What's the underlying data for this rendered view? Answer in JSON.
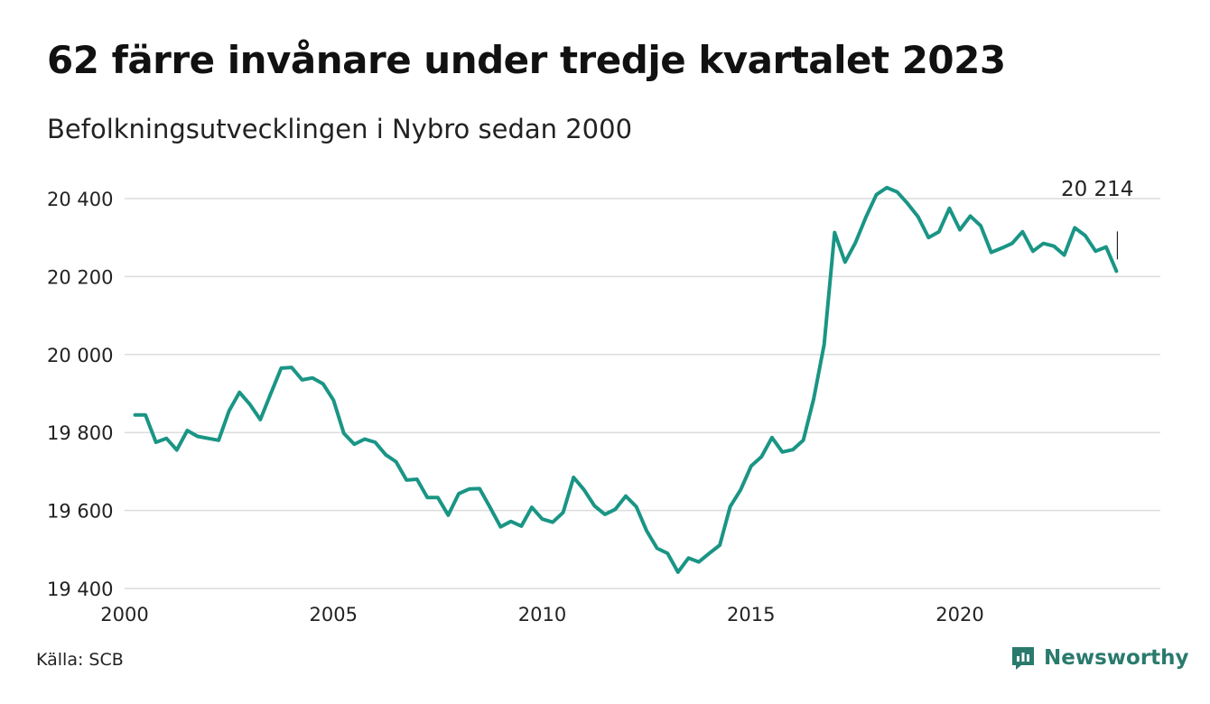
{
  "header": {
    "title": "62 färre invånare under tredje kvartalet 2023",
    "subtitle": "Befolkningsutvecklingen i Nybro sedan 2000"
  },
  "footer": {
    "source": "Källa: SCB",
    "brand": "Newsworthy"
  },
  "colors": {
    "line": "#1a9585",
    "grid": "#dcdcdc",
    "brand": "#2a7a6d"
  },
  "chart_data": {
    "type": "line",
    "title": "62 färre invånare under tredje kvartalet 2023",
    "subtitle": "Befolkningsutvecklingen i Nybro sedan 2000",
    "xlabel": "",
    "ylabel": "",
    "xlim": [
      2000,
      2024.8
    ],
    "ylim": [
      19400,
      20400
    ],
    "x_ticks": [
      2000,
      2005,
      2010,
      2015,
      2020
    ],
    "x_tick_labels": [
      "2000",
      "2005",
      "2010",
      "2015",
      "2020"
    ],
    "y_ticks": [
      19400,
      19600,
      19800,
      20000,
      20200,
      20400
    ],
    "y_tick_labels": [
      "19 400",
      "19 600",
      "19 800",
      "20 000",
      "20 200",
      "20 400"
    ],
    "grid": true,
    "annotation": {
      "text": "20 214",
      "x": 2023.75,
      "y": 20214
    },
    "series": [
      {
        "x": [
          2000.25,
          2000.5,
          2000.75,
          2001.0,
          2001.25,
          2001.5,
          2001.75,
          2002.0,
          2002.25,
          2002.5,
          2002.75,
          2003.0,
          2003.25,
          2003.5,
          2003.75,
          2004.0,
          2004.25,
          2004.5,
          2004.75,
          2005.0,
          2005.25,
          2005.5,
          2005.75,
          2006.0,
          2006.25,
          2006.5,
          2006.75,
          2007.0,
          2007.25,
          2007.5,
          2007.75,
          2008.0,
          2008.25,
          2008.5,
          2008.75,
          2009.0,
          2009.25,
          2009.5,
          2009.75,
          2010.0,
          2010.25,
          2010.5,
          2010.75,
          2011.0,
          2011.25,
          2011.5,
          2011.75,
          2012.0,
          2012.25,
          2012.5,
          2012.75,
          2013.0,
          2013.25,
          2013.5,
          2013.75,
          2014.0,
          2014.25,
          2014.5,
          2014.75,
          2015.0,
          2015.25,
          2015.5,
          2015.75,
          2016.0,
          2016.25,
          2016.5,
          2016.75,
          2017.0,
          2017.25,
          2017.5,
          2017.75,
          2018.0,
          2018.25,
          2018.5,
          2018.75,
          2019.0,
          2019.25,
          2019.5,
          2019.75,
          2020.0,
          2020.25,
          2020.5,
          2020.75,
          2021.0,
          2021.25,
          2021.5,
          2021.75,
          2022.0,
          2022.25,
          2022.5,
          2022.75,
          2023.0,
          2023.25,
          2023.5,
          2023.75
        ],
        "values": [
          19845,
          19845,
          19775,
          19785,
          19755,
          19805,
          19790,
          19785,
          19780,
          19855,
          19903,
          19872,
          19833,
          19900,
          19965,
          19967,
          19935,
          19940,
          19925,
          19883,
          19798,
          19770,
          19783,
          19775,
          19743,
          19725,
          19678,
          19680,
          19633,
          19633,
          19588,
          19643,
          19655,
          19656,
          19608,
          19558,
          19572,
          19560,
          19608,
          19578,
          19570,
          19595,
          19685,
          19653,
          19612,
          19590,
          19603,
          19637,
          19610,
          19548,
          19503,
          19490,
          19442,
          19478,
          19468,
          19490,
          19511,
          19610,
          19653,
          19714,
          19738,
          19787,
          19750,
          19756,
          19780,
          19886,
          20026,
          20313,
          20237,
          20287,
          20352,
          20410,
          20428,
          20417,
          20387,
          20353,
          20300,
          20315,
          20375,
          20320,
          20355,
          20330,
          20262,
          20273,
          20285,
          20315,
          20265,
          20285,
          20278,
          20255,
          20325,
          20305,
          20265,
          20276,
          20214
        ]
      }
    ]
  }
}
